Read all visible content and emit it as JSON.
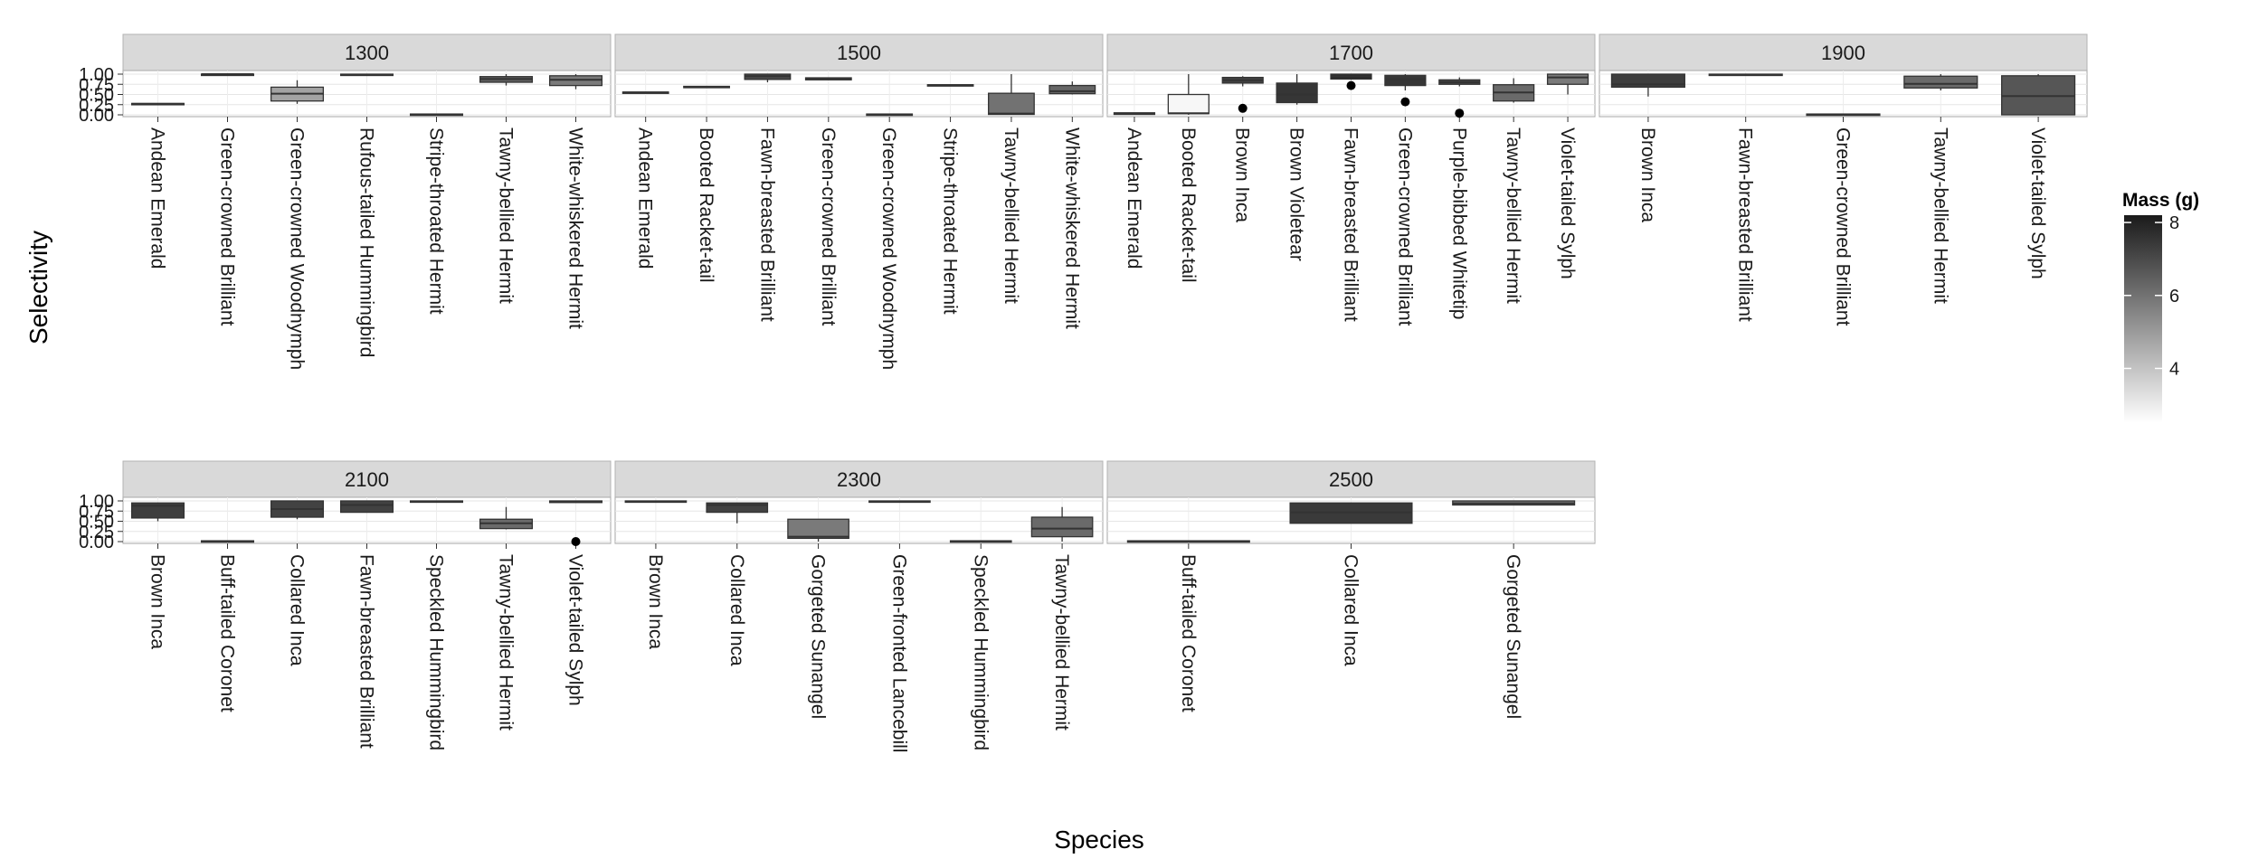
{
  "chart_data": {
    "type": "boxplot",
    "xlabel": "Species",
    "ylabel": "Selectivity",
    "ylim": [
      0,
      1
    ],
    "yticks": [
      "0.00",
      "0.25",
      "0.50",
      "0.75",
      "1.00"
    ],
    "grid": true,
    "legend": {
      "title": "Mass (g)",
      "position": "right",
      "ticks": [
        "4",
        "6",
        "8"
      ],
      "range": [
        2.5,
        8.2
      ],
      "low_color": "#ffffff",
      "high_color": "#1a1a1a"
    },
    "facets": [
      {
        "label": "1300",
        "species": [
          {
            "name": "Andean Emerald",
            "mass": 4.0,
            "lower": 0.26,
            "q1": 0.26,
            "median": 0.27,
            "q3": 0.28,
            "upper": 0.28,
            "outliers": []
          },
          {
            "name": "Green-crowned Brilliant",
            "mass": 7.5,
            "lower": 0.99,
            "q1": 0.99,
            "median": 1.0,
            "q3": 1.0,
            "upper": 1.0,
            "outliers": []
          },
          {
            "name": "Green-crowned Woodnymph",
            "mass": 4.8,
            "lower": 0.27,
            "q1": 0.34,
            "median": 0.52,
            "q3": 0.68,
            "upper": 0.85,
            "outliers": []
          },
          {
            "name": "Rufous-tailed Hummingbird",
            "mass": 5.0,
            "lower": 0.96,
            "q1": 0.97,
            "median": 0.99,
            "q3": 1.0,
            "upper": 1.0,
            "outliers": []
          },
          {
            "name": "Stripe-throated Hermit",
            "mass": 2.6,
            "lower": 0.0,
            "q1": 0.0,
            "median": 0.01,
            "q3": 0.02,
            "upper": 0.02,
            "outliers": []
          },
          {
            "name": "Tawny-bellied Hermit",
            "mass": 6.5,
            "lower": 0.72,
            "q1": 0.8,
            "median": 0.88,
            "q3": 0.94,
            "upper": 1.0,
            "outliers": []
          },
          {
            "name": "White-whiskered Hermit",
            "mass": 5.8,
            "lower": 0.63,
            "q1": 0.72,
            "median": 0.86,
            "q3": 0.96,
            "upper": 1.0,
            "outliers": []
          }
        ]
      },
      {
        "label": "1500",
        "species": [
          {
            "name": "Andean Emerald",
            "mass": 4.0,
            "lower": 0.54,
            "q1": 0.54,
            "median": 0.55,
            "q3": 0.56,
            "upper": 0.56,
            "outliers": []
          },
          {
            "name": "Booted Racket-tail",
            "mass": 3.2,
            "lower": 0.68,
            "q1": 0.68,
            "median": 0.69,
            "q3": 0.7,
            "upper": 0.7,
            "outliers": []
          },
          {
            "name": "Fawn-breasted Brilliant",
            "mass": 7.0,
            "lower": 0.8,
            "q1": 0.87,
            "median": 0.95,
            "q3": 1.0,
            "upper": 1.0,
            "outliers": []
          },
          {
            "name": "Green-crowned Brilliant",
            "mass": 6.9,
            "lower": 0.86,
            "q1": 0.86,
            "median": 0.88,
            "q3": 0.91,
            "upper": 0.91,
            "outliers": []
          },
          {
            "name": "Green-crowned Woodnymph",
            "mass": 4.8,
            "lower": 0.0,
            "q1": 0.0,
            "median": 0.01,
            "q3": 0.02,
            "upper": 0.02,
            "outliers": []
          },
          {
            "name": "Stripe-throated Hermit",
            "mass": 2.6,
            "lower": 0.72,
            "q1": 0.72,
            "median": 0.73,
            "q3": 0.74,
            "upper": 0.74,
            "outliers": []
          },
          {
            "name": "Tawny-bellied Hermit",
            "mass": 6.0,
            "lower": 0.0,
            "q1": 0.01,
            "median": 0.03,
            "q3": 0.53,
            "upper": 1.0,
            "outliers": []
          },
          {
            "name": "White-whiskered Hermit",
            "mass": 6.3,
            "lower": 0.5,
            "q1": 0.52,
            "median": 0.58,
            "q3": 0.72,
            "upper": 0.82,
            "outliers": []
          }
        ]
      },
      {
        "label": "1700",
        "species": [
          {
            "name": "Andean Emerald",
            "mass": 4.0,
            "lower": 0.0,
            "q1": 0.01,
            "median": 0.03,
            "q3": 0.05,
            "upper": 0.05,
            "outliers": []
          },
          {
            "name": "Booted Racket-tail",
            "mass": 2.7,
            "lower": 0.0,
            "q1": 0.03,
            "median": 0.04,
            "q3": 0.5,
            "upper": 1.0,
            "outliers": []
          },
          {
            "name": "Brown Inca",
            "mass": 7.2,
            "lower": 0.7,
            "q1": 0.78,
            "median": 0.85,
            "q3": 0.92,
            "upper": 0.95,
            "outliers": [
              0.16
            ]
          },
          {
            "name": "Brown Violetear",
            "mass": 7.5,
            "lower": 0.25,
            "q1": 0.3,
            "median": 0.5,
            "q3": 0.78,
            "upper": 1.0,
            "outliers": []
          },
          {
            "name": "Fawn-breasted Brilliant",
            "mass": 7.8,
            "lower": 0.86,
            "q1": 0.88,
            "median": 0.95,
            "q3": 1.0,
            "upper": 1.0,
            "outliers": [
              0.72
            ]
          },
          {
            "name": "Green-crowned Brilliant",
            "mass": 7.5,
            "lower": 0.6,
            "q1": 0.72,
            "median": 0.88,
            "q3": 0.97,
            "upper": 1.0,
            "outliers": [
              0.32
            ]
          },
          {
            "name": "Purple-bibbed Whitetip",
            "mass": 7.2,
            "lower": 0.7,
            "q1": 0.75,
            "median": 0.8,
            "q3": 0.86,
            "upper": 0.92,
            "outliers": [
              0.04
            ]
          },
          {
            "name": "Tawny-bellied Hermit",
            "mass": 6.2,
            "lower": 0.3,
            "q1": 0.34,
            "median": 0.55,
            "q3": 0.74,
            "upper": 0.9,
            "outliers": []
          },
          {
            "name": "Violet-tailed Sylph",
            "mass": 5.8,
            "lower": 0.5,
            "q1": 0.75,
            "median": 0.92,
            "q3": 1.0,
            "upper": 1.0,
            "outliers": []
          }
        ]
      },
      {
        "label": "1900",
        "species": [
          {
            "name": "Brown Inca",
            "mass": 7.3,
            "lower": 0.45,
            "q1": 0.68,
            "median": 0.75,
            "q3": 1.0,
            "upper": 1.0,
            "outliers": []
          },
          {
            "name": "Fawn-breasted Brilliant",
            "mass": 7.0,
            "lower": 0.98,
            "q1": 0.98,
            "median": 0.99,
            "q3": 1.0,
            "upper": 1.0,
            "outliers": []
          },
          {
            "name": "Green-crowned Brilliant",
            "mass": 6.9,
            "lower": 0.0,
            "q1": 0.0,
            "median": 0.01,
            "q3": 0.02,
            "upper": 0.02,
            "outliers": []
          },
          {
            "name": "Tawny-bellied Hermit",
            "mass": 6.2,
            "lower": 0.6,
            "q1": 0.66,
            "median": 0.76,
            "q3": 0.95,
            "upper": 1.0,
            "outliers": []
          },
          {
            "name": "Violet-tailed Sylph",
            "mass": 6.7,
            "lower": 0.0,
            "q1": 0.0,
            "median": 0.46,
            "q3": 0.96,
            "upper": 1.0,
            "outliers": []
          }
        ]
      },
      {
        "label": "2100",
        "species": [
          {
            "name": "Brown Inca",
            "mass": 7.3,
            "lower": 0.5,
            "q1": 0.58,
            "median": 0.88,
            "q3": 0.95,
            "upper": 0.95,
            "outliers": []
          },
          {
            "name": "Buff-tailed Coronet",
            "mass": 7.9,
            "lower": 0.0,
            "q1": 0.0,
            "median": 0.01,
            "q3": 0.02,
            "upper": 0.02,
            "outliers": []
          },
          {
            "name": "Collared Inca",
            "mass": 7.2,
            "lower": 0.55,
            "q1": 0.6,
            "median": 0.8,
            "q3": 1.0,
            "upper": 1.0,
            "outliers": []
          },
          {
            "name": "Fawn-breasted Brilliant",
            "mass": 7.2,
            "lower": 0.72,
            "q1": 0.72,
            "median": 0.9,
            "q3": 1.0,
            "upper": 1.0,
            "outliers": []
          },
          {
            "name": "Speckled Hummingbird",
            "mass": 6.3,
            "lower": 0.97,
            "q1": 0.97,
            "median": 0.99,
            "q3": 1.0,
            "upper": 1.0,
            "outliers": []
          },
          {
            "name": "Tawny-bellied Hermit",
            "mass": 6.2,
            "lower": 0.3,
            "q1": 0.32,
            "median": 0.45,
            "q3": 0.55,
            "upper": 0.85,
            "outliers": []
          },
          {
            "name": "Violet-tailed Sylph",
            "mass": 5.4,
            "lower": 0.96,
            "q1": 0.96,
            "median": 0.98,
            "q3": 1.0,
            "upper": 1.0,
            "outliers": [
              0.0
            ]
          }
        ]
      },
      {
        "label": "2300",
        "species": [
          {
            "name": "Brown Inca",
            "mass": 7.3,
            "lower": 0.97,
            "q1": 0.97,
            "median": 0.99,
            "q3": 1.0,
            "upper": 1.0,
            "outliers": []
          },
          {
            "name": "Collared Inca",
            "mass": 7.2,
            "lower": 0.45,
            "q1": 0.72,
            "median": 0.9,
            "q3": 0.95,
            "upper": 0.95,
            "outliers": []
          },
          {
            "name": "Gorgeted Sunangel",
            "mass": 5.8,
            "lower": 0.0,
            "q1": 0.08,
            "median": 0.12,
            "q3": 0.55,
            "upper": 0.55,
            "outliers": []
          },
          {
            "name": "Green-fronted Lancebill",
            "mass": 5.9,
            "lower": 0.97,
            "q1": 0.97,
            "median": 0.99,
            "q3": 1.0,
            "upper": 1.0,
            "outliers": []
          },
          {
            "name": "Speckled Hummingbird",
            "mass": 6.3,
            "lower": 0.0,
            "q1": 0.0,
            "median": 0.01,
            "q3": 0.02,
            "upper": 0.02,
            "outliers": []
          },
          {
            "name": "Tawny-bellied Hermit",
            "mass": 6.2,
            "lower": 0.0,
            "q1": 0.12,
            "median": 0.32,
            "q3": 0.6,
            "upper": 0.85,
            "outliers": []
          }
        ]
      },
      {
        "label": "2500",
        "species": [
          {
            "name": "Buff-tailed Coronet",
            "mass": 7.9,
            "lower": 0.0,
            "q1": 0.0,
            "median": 0.01,
            "q3": 0.02,
            "upper": 0.02,
            "outliers": []
          },
          {
            "name": "Collared Inca",
            "mass": 7.4,
            "lower": 0.45,
            "q1": 0.45,
            "median": 0.72,
            "q3": 0.95,
            "upper": 0.95,
            "outliers": []
          },
          {
            "name": "Gorgeted Sunangel",
            "mass": 5.8,
            "lower": 0.9,
            "q1": 0.9,
            "median": 0.94,
            "q3": 1.0,
            "upper": 1.0,
            "outliers": []
          }
        ]
      }
    ]
  }
}
